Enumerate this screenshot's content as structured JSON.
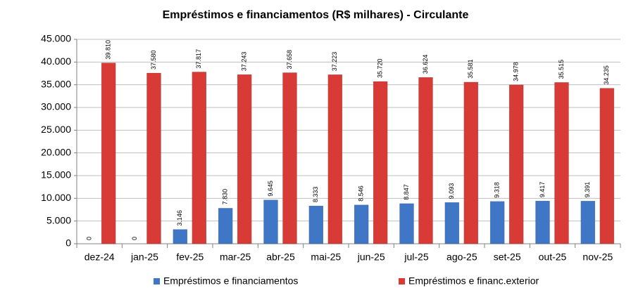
{
  "chart_data": {
    "type": "bar",
    "title": "Empréstimos e financiamentos (R$ milhares) - Circulante",
    "categories": [
      "dez-24",
      "jan-25",
      "fev-25",
      "mar-25",
      "abr-25",
      "mai-25",
      "jun-25",
      "jul-25",
      "ago-25",
      "set-25",
      "out-25",
      "nov-25"
    ],
    "series": [
      {
        "name": "Empréstimos e financiamentos",
        "color": "#3f76c6",
        "values": [
          0,
          0,
          3146,
          7830,
          9645,
          8333,
          8546,
          8847,
          9093,
          9318,
          9417,
          9391
        ],
        "value_labels": [
          "0",
          "0",
          "3.146",
          "7.830",
          "9.645",
          "8.333",
          "8.546",
          "8.847",
          "9.093",
          "9.318",
          "9.417",
          "9.391"
        ]
      },
      {
        "name": "Empréstimos e financ.exterior",
        "color": "#d83a36",
        "values": [
          39810,
          37580,
          37817,
          37243,
          37658,
          37223,
          35720,
          36624,
          35581,
          34978,
          35515,
          34235
        ],
        "value_labels": [
          "39.810",
          "37.580",
          "37.817",
          "37.243",
          "37.658",
          "37.223",
          "35.720",
          "36.624",
          "35.581",
          "34.978",
          "35.515",
          "34.235"
        ]
      }
    ],
    "ylim": [
      0,
      45000
    ],
    "yticks": [
      0,
      {
        "value": 5000,
        "label": "5.000"
      },
      {
        "value": 10000,
        "label": "10.000"
      },
      {
        "value": 15000,
        "label": "15.000"
      },
      {
        "value": 20000,
        "label": "20.000"
      },
      {
        "value": 25000,
        "label": "25.000"
      },
      {
        "value": 30000,
        "label": "30.000"
      },
      {
        "value": 35000,
        "label": "35.000"
      },
      {
        "value": 40000,
        "label": "40.000"
      },
      {
        "value": 45000,
        "label": "45.000"
      }
    ],
    "grid": true
  }
}
